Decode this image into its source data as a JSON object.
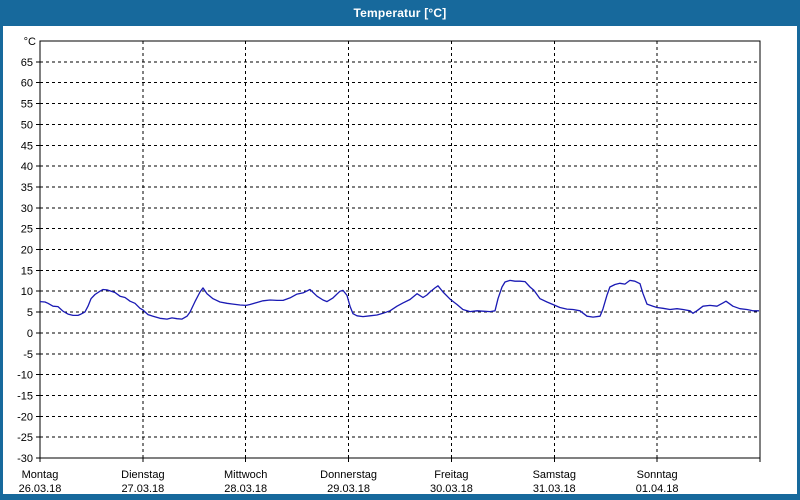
{
  "window": {
    "title": "Temperatur [°C]"
  },
  "colors": {
    "titlebar_bg": "#17699C",
    "window_border": "#17699C",
    "plot_bg": "#FFFFFF",
    "grid": "#000000",
    "axis": "#000000",
    "label_text": "#000000",
    "line": "#1A1AB4"
  },
  "chart_data": {
    "type": "line",
    "title": "Temperatur [°C]",
    "y_unit_label": "°C",
    "ylim": [
      -30,
      70
    ],
    "ytick_min": -30,
    "ytick_max": 65,
    "ytick_step": 5,
    "grid": "dashed",
    "x_days": 7,
    "x_categories": [
      {
        "day": "Montag",
        "date": "26.03.18"
      },
      {
        "day": "Dienstag",
        "date": "27.03.18"
      },
      {
        "day": "Mittwoch",
        "date": "28.03.18"
      },
      {
        "day": "Donnerstag",
        "date": "29.03.18"
      },
      {
        "day": "Freitag",
        "date": "30.03.18"
      },
      {
        "day": "Samstag",
        "date": "31.03.18"
      },
      {
        "day": "Sonntag",
        "date": "01.04.18"
      }
    ],
    "series": [
      {
        "name": "Temperatur",
        "color": "#1A1AB4",
        "points": [
          [
            0.0,
            7.5
          ],
          [
            0.049,
            7.4
          ],
          [
            0.078,
            7.1
          ],
          [
            0.126,
            6.4
          ],
          [
            0.175,
            6.3
          ],
          [
            0.224,
            5.2
          ],
          [
            0.272,
            4.5
          ],
          [
            0.321,
            4.2
          ],
          [
            0.369,
            4.2
          ],
          [
            0.399,
            4.5
          ],
          [
            0.437,
            5.0
          ],
          [
            0.467,
            6.4
          ],
          [
            0.496,
            8.2
          ],
          [
            0.535,
            9.2
          ],
          [
            0.583,
            10.0
          ],
          [
            0.612,
            10.4
          ],
          [
            0.651,
            10.3
          ],
          [
            0.729,
            9.7
          ],
          [
            0.778,
            8.8
          ],
          [
            0.826,
            8.5
          ],
          [
            0.875,
            7.6
          ],
          [
            0.924,
            7.1
          ],
          [
            0.972,
            5.9
          ],
          [
            1.001,
            5.5
          ],
          [
            1.05,
            4.4
          ],
          [
            1.099,
            4.0
          ],
          [
            1.167,
            3.5
          ],
          [
            1.235,
            3.3
          ],
          [
            1.283,
            3.6
          ],
          [
            1.332,
            3.4
          ],
          [
            1.381,
            3.3
          ],
          [
            1.429,
            4.0
          ],
          [
            1.458,
            5.0
          ],
          [
            1.507,
            7.5
          ],
          [
            1.556,
            9.8
          ],
          [
            1.585,
            10.8
          ],
          [
            1.624,
            9.4
          ],
          [
            1.682,
            8.2
          ],
          [
            1.75,
            7.4
          ],
          [
            1.818,
            7.1
          ],
          [
            1.877,
            6.9
          ],
          [
            1.944,
            6.7
          ],
          [
            2.003,
            6.6
          ],
          [
            2.042,
            6.8
          ],
          [
            2.11,
            7.3
          ],
          [
            2.168,
            7.7
          ],
          [
            2.236,
            7.9
          ],
          [
            2.304,
            7.8
          ],
          [
            2.363,
            7.8
          ],
          [
            2.431,
            8.4
          ],
          [
            2.499,
            9.3
          ],
          [
            2.557,
            9.6
          ],
          [
            2.625,
            10.4
          ],
          [
            2.693,
            8.8
          ],
          [
            2.751,
            7.9
          ],
          [
            2.79,
            7.5
          ],
          [
            2.849,
            8.4
          ],
          [
            2.917,
            10.0
          ],
          [
            2.946,
            10.2
          ],
          [
            2.985,
            9.0
          ],
          [
            3.014,
            6.4
          ],
          [
            3.043,
            4.6
          ],
          [
            3.082,
            4.1
          ],
          [
            3.14,
            3.9
          ],
          [
            3.208,
            4.1
          ],
          [
            3.276,
            4.3
          ],
          [
            3.335,
            4.7
          ],
          [
            3.403,
            5.3
          ],
          [
            3.471,
            6.4
          ],
          [
            3.529,
            7.2
          ],
          [
            3.597,
            8.0
          ],
          [
            3.665,
            9.4
          ],
          [
            3.724,
            8.5
          ],
          [
            3.762,
            9.1
          ],
          [
            3.792,
            9.8
          ],
          [
            3.84,
            10.8
          ],
          [
            3.869,
            11.3
          ],
          [
            3.918,
            9.8
          ],
          [
            3.986,
            8.1
          ],
          [
            4.054,
            6.8
          ],
          [
            4.112,
            5.6
          ],
          [
            4.181,
            5.1
          ],
          [
            4.249,
            5.3
          ],
          [
            4.307,
            5.2
          ],
          [
            4.375,
            5.1
          ],
          [
            4.424,
            5.3
          ],
          [
            4.453,
            8.2
          ],
          [
            4.492,
            11.0
          ],
          [
            4.521,
            12.2
          ],
          [
            4.569,
            12.6
          ],
          [
            4.618,
            12.4
          ],
          [
            4.667,
            12.4
          ],
          [
            4.715,
            12.3
          ],
          [
            4.764,
            11.0
          ],
          [
            4.803,
            10.2
          ],
          [
            4.861,
            8.2
          ],
          [
            4.929,
            7.4
          ],
          [
            4.987,
            6.8
          ],
          [
            5.055,
            6.1
          ],
          [
            5.123,
            5.7
          ],
          [
            5.182,
            5.6
          ],
          [
            5.25,
            5.3
          ],
          [
            5.318,
            4.0
          ],
          [
            5.376,
            3.8
          ],
          [
            5.444,
            4.0
          ],
          [
            5.473,
            5.7
          ],
          [
            5.512,
            9.0
          ],
          [
            5.541,
            11.0
          ],
          [
            5.59,
            11.6
          ],
          [
            5.638,
            11.9
          ],
          [
            5.687,
            11.7
          ],
          [
            5.735,
            12.6
          ],
          [
            5.784,
            12.4
          ],
          [
            5.833,
            11.8
          ],
          [
            5.862,
            9.5
          ],
          [
            5.901,
            6.9
          ],
          [
            5.96,
            6.4
          ],
          [
            5.999,
            6.1
          ],
          [
            6.057,
            5.9
          ],
          [
            6.125,
            5.6
          ],
          [
            6.193,
            5.8
          ],
          [
            6.251,
            5.6
          ],
          [
            6.319,
            5.3
          ],
          [
            6.348,
            4.7
          ],
          [
            6.387,
            5.3
          ],
          [
            6.446,
            6.4
          ],
          [
            6.514,
            6.6
          ],
          [
            6.582,
            6.4
          ],
          [
            6.64,
            7.2
          ],
          [
            6.669,
            7.6
          ],
          [
            6.737,
            6.4
          ],
          [
            6.805,
            5.8
          ],
          [
            6.873,
            5.6
          ],
          [
            6.931,
            5.3
          ],
          [
            6.99,
            5.3
          ]
        ]
      }
    ]
  }
}
